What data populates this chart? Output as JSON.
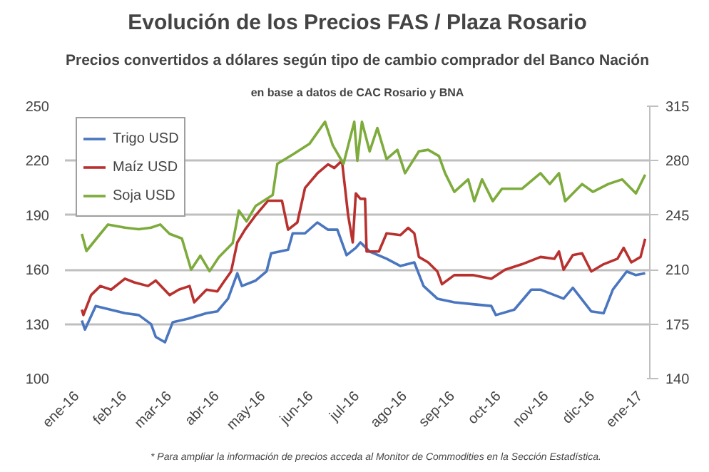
{
  "chart_data": {
    "type": "line",
    "title": "Evolución de los Precios FAS / Plaza Rosario",
    "subtitle": "Precios convertidos a dólares según tipo de cambio comprador del Banco Nación",
    "annotations": [
      "en base a datos de CAC Rosario y BNA",
      "* Para ampliar la información de precios acceda al Monitor de Commodities en la Sección Estadística."
    ],
    "xlim": [
      "2015-12-24",
      "2017-01-07"
    ],
    "xticks": [
      {
        "value": "2016-01-01",
        "label": "ene-16"
      },
      {
        "value": "2016-02-01",
        "label": "feb-16"
      },
      {
        "value": "2016-03-01",
        "label": "mar-16"
      },
      {
        "value": "2016-04-01",
        "label": "abr-16"
      },
      {
        "value": "2016-05-01",
        "label": "may-16"
      },
      {
        "value": "2016-06-01",
        "label": "jun-16"
      },
      {
        "value": "2016-07-01",
        "label": "jul-16"
      },
      {
        "value": "2016-08-01",
        "label": "ago-16"
      },
      {
        "value": "2016-09-01",
        "label": "sep-16"
      },
      {
        "value": "2016-10-01",
        "label": "oct-16"
      },
      {
        "value": "2016-11-01",
        "label": "nov-16"
      },
      {
        "value": "2016-12-01",
        "label": "dic-16"
      },
      {
        "value": "2017-01-01",
        "label": "ene-17"
      }
    ],
    "ylim": [
      100,
      250
    ],
    "yticks": [
      100,
      130,
      160,
      190,
      220,
      250
    ],
    "y2lim": [
      140,
      315
    ],
    "y2ticks": [
      140,
      175,
      210,
      245,
      280,
      315
    ],
    "grid": "y",
    "legend": "top left",
    "line_style": "solid",
    "series": [
      {
        "name": "Trigo USD",
        "color": "#4a76c0",
        "x": [
          "2016-01-04",
          "2016-01-06",
          "2016-01-13",
          "2016-02-01",
          "2016-02-10",
          "2016-02-18",
          "2016-02-21",
          "2016-02-27",
          "2016-03-03",
          "2016-03-13",
          "2016-03-25",
          "2016-04-01",
          "2016-04-08",
          "2016-04-14",
          "2016-04-17",
          "2016-04-26",
          "2016-05-03",
          "2016-05-06",
          "2016-05-17",
          "2016-05-20",
          "2016-05-28",
          "2016-06-05",
          "2016-06-12",
          "2016-06-18",
          "2016-06-24",
          "2016-06-30",
          "2016-07-03",
          "2016-07-09",
          "2016-07-20",
          "2016-07-29",
          "2016-08-07",
          "2016-08-13",
          "2016-08-22",
          "2016-09-02",
          "2016-09-14",
          "2016-09-26",
          "2016-09-29",
          "2016-10-11",
          "2016-10-22",
          "2016-10-28",
          "2016-11-12",
          "2016-11-18",
          "2016-11-30",
          "2016-12-08",
          "2016-12-14",
          "2016-12-23",
          "2016-12-29",
          "2017-01-04"
        ],
        "values": [
          132,
          127,
          140,
          136,
          135,
          130,
          123,
          120,
          131,
          133,
          136,
          137,
          144,
          158,
          151,
          154,
          159,
          169,
          171,
          180,
          180,
          186,
          182,
          182,
          168,
          172,
          175,
          170,
          166,
          162,
          164,
          151,
          144,
          142,
          141,
          140,
          135,
          138,
          149,
          149,
          144,
          150,
          137,
          136,
          149,
          159,
          157,
          158
        ]
      },
      {
        "name": "Maíz USD",
        "color": "#b8312f",
        "x": [
          "2016-01-04",
          "2016-01-05",
          "2016-01-10",
          "2016-01-16",
          "2016-01-23",
          "2016-02-01",
          "2016-02-07",
          "2016-02-16",
          "2016-02-21",
          "2016-03-01",
          "2016-03-07",
          "2016-03-14",
          "2016-03-17",
          "2016-03-25",
          "2016-04-01",
          "2016-04-05",
          "2016-04-10",
          "2016-04-14",
          "2016-04-19",
          "2016-04-26",
          "2016-05-04",
          "2016-05-13",
          "2016-05-17",
          "2016-05-23",
          "2016-05-28",
          "2016-06-05",
          "2016-06-12",
          "2016-06-16",
          "2016-06-21",
          "2016-06-25",
          "2016-06-28",
          "2016-06-30",
          "2016-07-03",
          "2016-07-06",
          "2016-07-07",
          "2016-07-15",
          "2016-07-20",
          "2016-07-29",
          "2016-08-03",
          "2016-08-07",
          "2016-08-10",
          "2016-08-16",
          "2016-08-22",
          "2016-08-25",
          "2016-09-02",
          "2016-09-14",
          "2016-09-26",
          "2016-10-05",
          "2016-10-16",
          "2016-10-28",
          "2016-11-06",
          "2016-11-09",
          "2016-11-12",
          "2016-11-18",
          "2016-11-24",
          "2016-11-30",
          "2016-12-08",
          "2016-12-17",
          "2016-12-21",
          "2016-12-26",
          "2017-01-01",
          "2017-01-04"
        ],
        "values": [
          138,
          135,
          146,
          151,
          149,
          155,
          153,
          151,
          154,
          146,
          149,
          151,
          142,
          149,
          148,
          153,
          159,
          175,
          182,
          190,
          198,
          198,
          182,
          186,
          205,
          213,
          218,
          216,
          220,
          190,
          175,
          202,
          199,
          199,
          170,
          170,
          180,
          179,
          183,
          180,
          167,
          164,
          159,
          152,
          157,
          157,
          155,
          160,
          163,
          167,
          166,
          170,
          160,
          168,
          169,
          159,
          163,
          166,
          172,
          164,
          167,
          177
        ]
      },
      {
        "name": "Soja USD",
        "color": "#7dab3c",
        "axis": "y2",
        "x": [
          "2016-01-04",
          "2016-01-07",
          "2016-01-16",
          "2016-01-21",
          "2016-02-01",
          "2016-02-10",
          "2016-02-18",
          "2016-02-24",
          "2016-03-01",
          "2016-03-09",
          "2016-03-15",
          "2016-03-21",
          "2016-03-27",
          "2016-04-02",
          "2016-04-11",
          "2016-04-15",
          "2016-04-20",
          "2016-04-26",
          "2016-05-07",
          "2016-05-10",
          "2016-05-20",
          "2016-05-31",
          "2016-06-10",
          "2016-06-15",
          "2016-06-22",
          "2016-06-29",
          "2016-07-01",
          "2016-07-04",
          "2016-07-09",
          "2016-07-14",
          "2016-07-20",
          "2016-07-27",
          "2016-08-01",
          "2016-08-10",
          "2016-08-16",
          "2016-08-23",
          "2016-08-27",
          "2016-09-02",
          "2016-09-11",
          "2016-09-15",
          "2016-09-20",
          "2016-09-27",
          "2016-10-03",
          "2016-10-16",
          "2016-10-28",
          "2016-11-03",
          "2016-11-09",
          "2016-11-13",
          "2016-11-24",
          "2016-12-01",
          "2016-12-11",
          "2016-12-20",
          "2016-12-29",
          "2017-01-04"
        ],
        "values": [
          233,
          222,
          233,
          239,
          237,
          236,
          237,
          239,
          233,
          230,
          210,
          219,
          209,
          218,
          227,
          248,
          241,
          251,
          258,
          278,
          284,
          291,
          305,
          290,
          278,
          305,
          280,
          305,
          286,
          301,
          281,
          287,
          272,
          286,
          287,
          283,
          272,
          260,
          268,
          254,
          268,
          254,
          262,
          262,
          272,
          265,
          272,
          254,
          265,
          260,
          265,
          268,
          259,
          271
        ]
      }
    ]
  }
}
